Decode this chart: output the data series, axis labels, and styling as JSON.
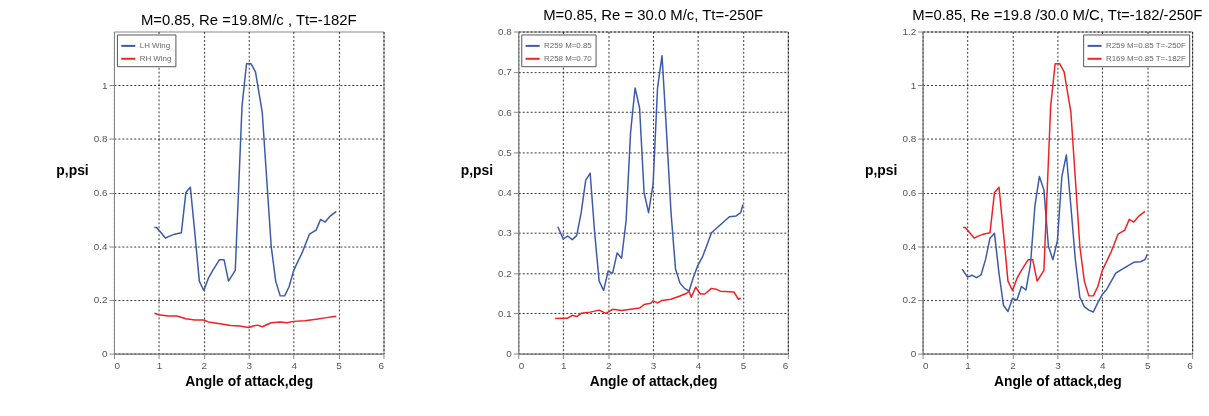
{
  "chart_data": [
    {
      "type": "line",
      "title": "M=0.85,   Re =19.8M/c , Tt=-182F",
      "xlabel": "Angle of attack,deg",
      "ylabel": "p,psi",
      "xlim": [
        0,
        6
      ],
      "xticks": [
        0,
        1,
        2,
        3,
        4,
        5,
        6
      ],
      "ylim": [
        0,
        1.2
      ],
      "yticks": [
        0,
        0.2,
        0.4,
        0.6,
        0.8,
        1
      ],
      "grid": true,
      "legend": "top left",
      "line_style": "solid",
      "marker": "none",
      "series": [
        {
          "name": "LH Wing",
          "color": "#3c5aaa",
          "x": [
            0.9,
            0.95,
            1.05,
            1.15,
            1.2,
            1.35,
            1.5,
            1.6,
            1.7,
            1.8,
            1.9,
            2.0,
            2.1,
            2.2,
            2.35,
            2.45,
            2.55,
            2.7,
            2.85,
            2.95,
            3.05,
            3.15,
            3.3,
            3.5,
            3.6,
            3.7,
            3.8,
            3.9,
            4.0,
            4.2,
            4.35,
            4.5,
            4.6,
            4.7,
            4.8,
            4.95
          ],
          "values": [
            0.47,
            0.47,
            0.45,
            0.43,
            0.435,
            0.445,
            0.45,
            0.6,
            0.62,
            0.45,
            0.27,
            0.235,
            0.28,
            0.31,
            0.35,
            0.35,
            0.27,
            0.31,
            0.92,
            1.08,
            1.08,
            1.05,
            0.9,
            0.4,
            0.27,
            0.215,
            0.215,
            0.25,
            0.31,
            0.38,
            0.445,
            0.46,
            0.5,
            0.49,
            0.51,
            0.53
          ]
        },
        {
          "name": "RH Wing",
          "color": "#ee2222",
          "x": [
            0.9,
            1.0,
            1.2,
            1.4,
            1.6,
            1.8,
            2.0,
            2.1,
            2.4,
            2.6,
            2.8,
            3.0,
            3.1,
            3.2,
            3.3,
            3.5,
            3.7,
            3.85,
            4.0,
            4.25,
            4.5,
            4.7,
            4.9,
            4.95
          ],
          "values": [
            0.15,
            0.145,
            0.14,
            0.14,
            0.13,
            0.125,
            0.125,
            0.118,
            0.11,
            0.105,
            0.103,
            0.097,
            0.103,
            0.106,
            0.1,
            0.115,
            0.118,
            0.115,
            0.12,
            0.122,
            0.128,
            0.133,
            0.138,
            0.138
          ]
        }
      ]
    },
    {
      "type": "line",
      "title": "M=0.85,   Re = 30.0  M/c, Tt=-250F",
      "xlabel": "Angle of attack,deg",
      "ylabel": "p,psi",
      "xlim": [
        0,
        6
      ],
      "xticks": [
        0,
        1,
        2,
        3,
        4,
        5,
        6
      ],
      "ylim": [
        0,
        0.8
      ],
      "yticks": [
        0,
        0.1,
        0.2,
        0.3,
        0.4,
        0.5,
        0.6,
        0.7,
        0.8
      ],
      "grid": true,
      "legend": "top left",
      "line_style": "solid",
      "marker": "none",
      "series": [
        {
          "name": "R259 M=0.85",
          "color": "#3c5aaa",
          "x": [
            0.88,
            1.0,
            1.1,
            1.2,
            1.3,
            1.4,
            1.5,
            1.6,
            1.7,
            1.8,
            1.9,
            2.0,
            2.1,
            2.2,
            2.3,
            2.4,
            2.5,
            2.6,
            2.7,
            2.8,
            2.9,
            3.0,
            3.1,
            3.2,
            3.3,
            3.4,
            3.5,
            3.6,
            3.7,
            3.8,
            3.9,
            4.0,
            4.1,
            4.2,
            4.3,
            4.5,
            4.7,
            4.85,
            4.95,
            5.0
          ],
          "values": [
            0.315,
            0.285,
            0.292,
            0.283,
            0.293,
            0.35,
            0.43,
            0.448,
            0.3,
            0.18,
            0.157,
            0.205,
            0.2,
            0.25,
            0.237,
            0.33,
            0.55,
            0.66,
            0.61,
            0.4,
            0.35,
            0.42,
            0.66,
            0.74,
            0.55,
            0.35,
            0.21,
            0.175,
            0.162,
            0.155,
            0.19,
            0.22,
            0.24,
            0.27,
            0.3,
            0.32,
            0.34,
            0.342,
            0.35,
            0.37
          ]
        },
        {
          "name": "R258 M=0.70",
          "color": "#ee2222",
          "x": [
            0.82,
            1.0,
            1.1,
            1.2,
            1.3,
            1.4,
            1.6,
            1.8,
            1.95,
            2.1,
            2.3,
            2.5,
            2.7,
            2.8,
            2.95,
            3.0,
            3.1,
            3.2,
            3.4,
            3.6,
            3.75,
            3.8,
            3.85,
            3.95,
            4.05,
            4.15,
            4.3,
            4.4,
            4.5,
            4.8,
            4.9,
            4.95
          ],
          "values": [
            0.087,
            0.088,
            0.088,
            0.095,
            0.092,
            0.1,
            0.103,
            0.108,
            0.1,
            0.11,
            0.107,
            0.11,
            0.113,
            0.122,
            0.125,
            0.131,
            0.126,
            0.132,
            0.135,
            0.143,
            0.15,
            0.155,
            0.14,
            0.165,
            0.148,
            0.148,
            0.162,
            0.16,
            0.155,
            0.153,
            0.135,
            0.138
          ]
        }
      ]
    },
    {
      "type": "line",
      "title": "M=0.85, Re =19.8 /30.0 M/C, Tt=-182/-250F",
      "xlabel": "Angle of attack,deg",
      "ylabel": "p,psi",
      "xlim": [
        0,
        6
      ],
      "xticks": [
        0,
        1,
        2,
        3,
        4,
        5,
        6
      ],
      "ylim": [
        0,
        1.2
      ],
      "yticks": [
        0,
        0.2,
        0.4,
        0.6,
        0.8,
        1,
        1.2
      ],
      "grid": true,
      "legend": "top right",
      "line_style": "solid",
      "marker": "none",
      "series": [
        {
          "name": "R259 M=0.85 T=-250F",
          "color": "#3c5aaa",
          "x": [
            0.88,
            1.0,
            1.1,
            1.2,
            1.3,
            1.4,
            1.5,
            1.6,
            1.7,
            1.8,
            1.9,
            2.0,
            2.1,
            2.2,
            2.3,
            2.4,
            2.5,
            2.6,
            2.7,
            2.8,
            2.9,
            3.0,
            3.1,
            3.2,
            3.3,
            3.4,
            3.5,
            3.6,
            3.7,
            3.8,
            3.9,
            4.0,
            4.1,
            4.2,
            4.3,
            4.5,
            4.7,
            4.85,
            4.95,
            5.0
          ],
          "values": [
            0.315,
            0.285,
            0.292,
            0.283,
            0.293,
            0.35,
            0.43,
            0.448,
            0.3,
            0.18,
            0.157,
            0.205,
            0.2,
            0.25,
            0.237,
            0.33,
            0.55,
            0.66,
            0.61,
            0.4,
            0.35,
            0.42,
            0.66,
            0.74,
            0.55,
            0.35,
            0.21,
            0.175,
            0.162,
            0.155,
            0.19,
            0.22,
            0.24,
            0.27,
            0.3,
            0.32,
            0.34,
            0.342,
            0.35,
            0.37
          ]
        },
        {
          "name": "R169 M=0.85 T=-182F",
          "color": "#ee2222",
          "x": [
            0.9,
            0.95,
            1.05,
            1.15,
            1.2,
            1.35,
            1.5,
            1.6,
            1.7,
            1.8,
            1.9,
            2.0,
            2.1,
            2.2,
            2.35,
            2.45,
            2.55,
            2.7,
            2.85,
            2.95,
            3.05,
            3.15,
            3.3,
            3.5,
            3.6,
            3.7,
            3.8,
            3.9,
            4.0,
            4.2,
            4.35,
            4.5,
            4.6,
            4.7,
            4.8,
            4.95
          ],
          "values": [
            0.47,
            0.47,
            0.45,
            0.43,
            0.435,
            0.445,
            0.45,
            0.6,
            0.62,
            0.45,
            0.27,
            0.235,
            0.28,
            0.31,
            0.35,
            0.35,
            0.27,
            0.31,
            0.92,
            1.08,
            1.08,
            1.05,
            0.9,
            0.4,
            0.27,
            0.215,
            0.215,
            0.25,
            0.31,
            0.38,
            0.445,
            0.46,
            0.5,
            0.49,
            0.51,
            0.53
          ]
        }
      ]
    }
  ]
}
